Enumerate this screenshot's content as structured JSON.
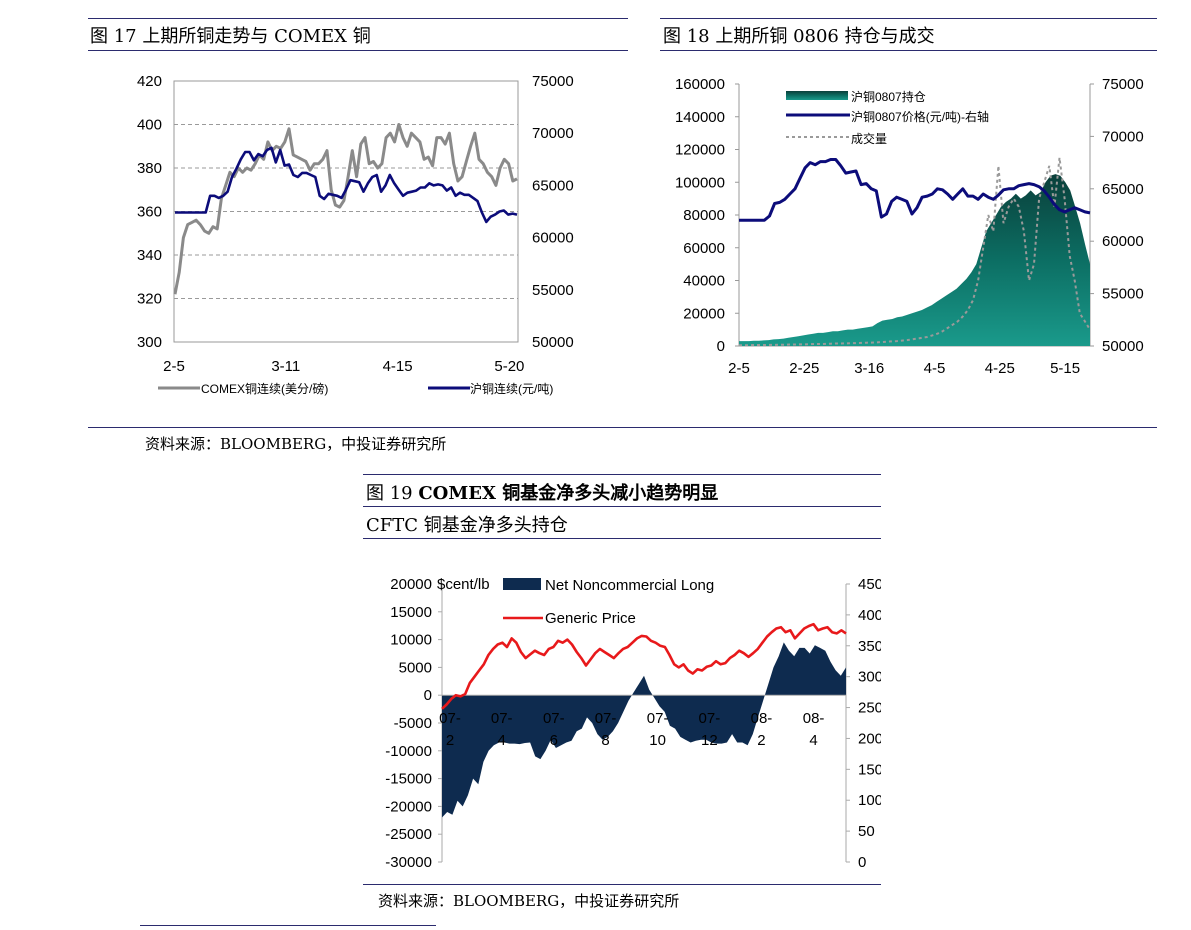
{
  "fig17": {
    "caption": "图 17  上期所铜走势与 COMEX 铜",
    "source": "资料来源：BLOOMBERG，中投证券研究所"
  },
  "fig18": {
    "caption": "图 18  上期所铜 0806 持仓与成交"
  },
  "fig19": {
    "caption_num": "图 19 ",
    "caption_bold": "COMEX 铜基金净多头减小趋势明显",
    "subtitle": "CFTC 铜基金净多头持仓",
    "source": "资料来源：BLOOMBERG，中投证券研究所"
  },
  "chart_data": [
    {
      "id": "fig17",
      "type": "line",
      "title": "",
      "xlabel": "",
      "ylabel": "",
      "x_ticks": [
        "2-5",
        "3-11",
        "4-15",
        "5-20"
      ],
      "y_left_ticks": [
        300,
        320,
        340,
        360,
        380,
        400,
        420
      ],
      "y_right_ticks": [
        50000,
        55000,
        60000,
        65000,
        70000,
        75000
      ],
      "ylim_left": [
        300,
        420
      ],
      "ylim_right": [
        50000,
        75000
      ],
      "grid": true,
      "legend_position": "bottom",
      "series": [
        {
          "name": "COMEX铜连续(美分/磅)",
          "axis": "left",
          "color": "#8a8a8a",
          "values": [
            322,
            332,
            348,
            354,
            355,
            356,
            354,
            351,
            350,
            353,
            352,
            366,
            372,
            378,
            376,
            380,
            378,
            380,
            379,
            382,
            386,
            384,
            392,
            388,
            390,
            389,
            392,
            398,
            386,
            385,
            384,
            383,
            379,
            382,
            382,
            384,
            388,
            370,
            363,
            362,
            365,
            376,
            388,
            376,
            391,
            394,
            382,
            383,
            380,
            382,
            394,
            396,
            392,
            400,
            394,
            390,
            396,
            394,
            392,
            384,
            385,
            381,
            394,
            394,
            391,
            396,
            382,
            374,
            376,
            383,
            390,
            396,
            384,
            382,
            378,
            376,
            372,
            380,
            384,
            382,
            374,
            375
          ]
        },
        {
          "name": "沪铜连续(元/吨)",
          "axis": "right",
          "color": "#0c0c7a",
          "values": [
            62400,
            62400,
            62400,
            62400,
            62400,
            62400,
            62400,
            62400,
            64000,
            64000,
            63800,
            64000,
            64400,
            65800,
            66600,
            67500,
            68200,
            68200,
            67400,
            68000,
            67800,
            68400,
            68600,
            67200,
            68400,
            66900,
            67000,
            66000,
            65800,
            66200,
            66200,
            66000,
            65800,
            64000,
            63700,
            64200,
            64100,
            64000,
            63800,
            64600,
            65500,
            65400,
            65300,
            64400,
            65200,
            65800,
            66000,
            64400,
            65000,
            66000,
            65200,
            64600,
            64000,
            64300,
            64400,
            64500,
            64800,
            64800,
            65200,
            65000,
            65100,
            65000,
            64500,
            64800,
            64000,
            64300,
            64100,
            64100,
            63800,
            63500,
            62400,
            61500,
            62000,
            62200,
            62500,
            62600,
            62200,
            62300,
            62200
          ]
        }
      ]
    },
    {
      "id": "fig18",
      "type": "area",
      "title": "",
      "xlabel": "",
      "ylabel": "",
      "x_ticks": [
        "2-5",
        "2-25",
        "3-16",
        "4-5",
        "4-25",
        "5-15"
      ],
      "y_left_ticks": [
        0,
        20000,
        40000,
        60000,
        80000,
        100000,
        120000,
        140000,
        160000
      ],
      "y_right_ticks": [
        50000,
        55000,
        60000,
        65000,
        70000,
        75000
      ],
      "ylim_left": [
        0,
        160000
      ],
      "ylim_right": [
        50000,
        75000
      ],
      "grid": false,
      "legend_position": "top-left",
      "series": [
        {
          "name": "沪铜0807持仓",
          "axis": "left",
          "kind": "area",
          "color": "#0b6b61",
          "values": [
            3000,
            3000,
            3000,
            3200,
            3200,
            3400,
            3600,
            4000,
            4200,
            4500,
            5000,
            5500,
            6000,
            6500,
            7000,
            7500,
            8000,
            8000,
            8500,
            9000,
            9000,
            9500,
            10000,
            10000,
            10500,
            11000,
            11500,
            12000,
            14000,
            15500,
            16000,
            16500,
            17500,
            18000,
            19000,
            20000,
            21000,
            22000,
            23500,
            25000,
            27000,
            29000,
            31000,
            33000,
            35000,
            38000,
            41000,
            45000,
            50000,
            60000,
            70000,
            75000,
            80000,
            85000,
            88000,
            90000,
            93000,
            90000,
            92000,
            95000,
            92000,
            94000,
            100000,
            104000,
            105000,
            104000,
            100000,
            95000,
            85000,
            75000,
            62000,
            50000
          ]
        },
        {
          "name": "沪铜0807价格(元/吨)-右轴",
          "axis": "right",
          "kind": "line",
          "color": "#0c0c7a",
          "values": [
            62000,
            62000,
            62000,
            62000,
            62000,
            62000,
            62400,
            63600,
            63700,
            64000,
            64500,
            65000,
            66000,
            67000,
            67500,
            67300,
            67600,
            67600,
            67800,
            67800,
            67200,
            66500,
            66600,
            66700,
            65400,
            65500,
            65000,
            64800,
            62300,
            62600,
            63800,
            64200,
            64000,
            63800,
            62600,
            63200,
            64200,
            64300,
            64500,
            65000,
            64900,
            64500,
            64000,
            64500,
            65000,
            64300,
            64300,
            64000,
            64500,
            64200,
            64000,
            64400,
            64900,
            65000,
            65000,
            65300,
            65400,
            65500,
            65400,
            65200,
            64800,
            64200,
            63500,
            63000,
            62800,
            63000,
            63200,
            63000,
            62800,
            62700
          ]
        },
        {
          "name": "成交量",
          "axis": "left",
          "kind": "line",
          "dashed": true,
          "color": "#9a9a9a",
          "values": [
            500,
            500,
            500,
            600,
            600,
            600,
            700,
            700,
            800,
            800,
            900,
            900,
            1000,
            1000,
            1100,
            1200,
            1200,
            1300,
            1400,
            1500,
            1500,
            1600,
            1700,
            1800,
            1900,
            2000,
            2100,
            2200,
            2400,
            2600,
            2800,
            3000,
            3300,
            3600,
            4000,
            4500,
            5000,
            5500,
            6500,
            7500,
            9000,
            11000,
            13000,
            15000,
            18000,
            22000,
            28000,
            40000,
            60000,
            80000,
            70000,
            110000,
            75000,
            85000,
            90000,
            85000,
            70000,
            40000,
            50000,
            90000,
            100000,
            110000,
            85000,
            115000,
            90000,
            55000,
            40000,
            20000,
            15000,
            10000
          ]
        }
      ]
    },
    {
      "id": "fig19",
      "type": "area",
      "title": "",
      "xlabel": "",
      "ylabel": "",
      "x_ticks": [
        "07-2",
        "07-4",
        "07-6",
        "07-8",
        "07-10",
        "07-12",
        "08-2",
        "08-4"
      ],
      "y_left_ticks": [
        -30000,
        -25000,
        -20000,
        -15000,
        -10000,
        -5000,
        0,
        5000,
        10000,
        15000,
        20000
      ],
      "y_left_unit": "$cent/lb",
      "y_right_ticks": [
        0,
        50,
        100,
        150,
        200,
        250,
        300,
        350,
        400,
        450
      ],
      "ylim_left": [
        -30000,
        20000
      ],
      "ylim_right": [
        0,
        450
      ],
      "grid": false,
      "legend_position": "top",
      "series": [
        {
          "name": "Net Noncommercial Long",
          "axis": "left",
          "kind": "area",
          "color": "#0e2b4f",
          "values": [
            -22000,
            -21000,
            -21500,
            -19000,
            -20000,
            -18000,
            -15000,
            -16000,
            -12000,
            -10000,
            -9000,
            -8500,
            -8500,
            -8700,
            -8700,
            -8800,
            -8600,
            -8500,
            -11000,
            -11500,
            -10000,
            -8000,
            -9500,
            -9000,
            -8500,
            -8200,
            -6500,
            -6000,
            -4000,
            -5000,
            -7000,
            -8000,
            -7500,
            -6500,
            -5000,
            -3000,
            -1000,
            500,
            2000,
            3500,
            1000,
            -500,
            -2000,
            -3000,
            -5500,
            -6000,
            -7500,
            -8000,
            -8500,
            -8200,
            -8000,
            -8000,
            -8500,
            -8700,
            -8700,
            -8500,
            -7000,
            -8500,
            -8500,
            -9000,
            -7000,
            -4000,
            -1000,
            2000,
            5000,
            7000,
            9500,
            8000,
            7000,
            8500,
            8500,
            7500,
            9000,
            8500,
            8000,
            6000,
            4500,
            3500,
            5000
          ]
        },
        {
          "name": "Generic Price",
          "axis": "right",
          "kind": "line",
          "color": "#e8191b",
          "values": [
            248,
            255,
            264,
            270,
            268,
            272,
            290,
            300,
            310,
            320,
            335,
            345,
            352,
            355,
            348,
            362,
            355,
            340,
            330,
            336,
            342,
            338,
            335,
            345,
            348,
            358,
            355,
            360,
            352,
            340,
            330,
            318,
            328,
            338,
            345,
            340,
            335,
            330,
            338,
            345,
            348,
            355,
            362,
            366,
            365,
            358,
            355,
            350,
            348,
            335,
            320,
            315,
            320,
            310,
            305,
            312,
            310,
            316,
            318,
            325,
            320,
            322,
            330,
            335,
            342,
            338,
            332,
            338,
            345,
            355,
            365,
            372,
            378,
            380,
            372,
            375,
            362,
            370,
            378,
            382,
            385,
            375,
            378,
            380,
            372,
            370,
            375,
            370
          ]
        }
      ]
    }
  ]
}
